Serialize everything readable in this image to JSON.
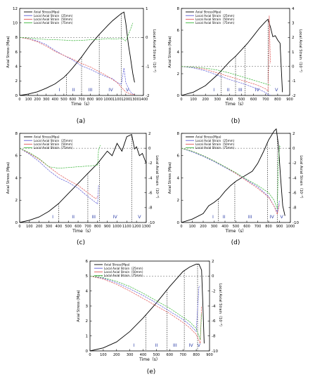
{
  "figure": {
    "panels": [
      "(a)",
      "(b)",
      "(c)",
      "(d)",
      "(e)"
    ]
  },
  "chart_data": [
    {
      "type": "line",
      "panel_label": "(a)",
      "xlabel": "Time（s）",
      "ylabel": "Axial Stress (Mpa)",
      "y2label": "Local Axial Strain（10⁻³）",
      "xlim": [
        0,
        1400
      ],
      "ylim": [
        0,
        12
      ],
      "y2lim": [
        -2,
        1
      ],
      "xticks": [
        0,
        100,
        200,
        300,
        400,
        500,
        600,
        700,
        800,
        900,
        1000,
        1100,
        1200,
        1300,
        1400
      ],
      "yticks": [
        0,
        2,
        4,
        6,
        8,
        10,
        12
      ],
      "y2ticks": [
        -2,
        -1,
        0,
        1
      ],
      "legend": [
        "Axial Stress(Mpa)",
        "Local Axial Strain（25mm）",
        "Local Axial Strain（50mm）",
        "Local Axial Strain（75mm）"
      ],
      "legend_position": "top-left",
      "stage_labels": [
        "I",
        "II",
        "III",
        "IV",
        "V"
      ],
      "stage_boundaries": [
        530,
        700,
        900,
        1150
      ],
      "stage_label_x": [
        450,
        610,
        800,
        1030,
        1220
      ],
      "series": [
        {
          "name": "Axial Stress(Mpa)",
          "axis": "left",
          "color": "#000000",
          "x": [
            0,
            100,
            200,
            300,
            400,
            500,
            550,
            600,
            700,
            800,
            900,
            1000,
            1050,
            1100,
            1150,
            1180,
            1200,
            1230,
            1250,
            1280,
            1300
          ],
          "y": [
            0,
            0.2,
            0.5,
            1.0,
            1.6,
            2.5,
            3.1,
            3.8,
            5.3,
            7.0,
            8.4,
            9.7,
            10.3,
            10.8,
            11.3,
            11.5,
            10.0,
            7.0,
            5.5,
            3.0,
            1.8
          ]
        },
        {
          "name": "Local Axial Strain（25mm）",
          "axis": "right",
          "color": "#5b5bd6",
          "x": [
            0,
            100,
            200,
            300,
            400,
            500,
            600,
            700,
            800,
            900,
            1000,
            1050,
            1100,
            1150,
            1180,
            1200,
            1230,
            1260,
            1280,
            1300
          ],
          "y": [
            0,
            -0.05,
            -0.12,
            -0.25,
            -0.45,
            -0.62,
            -0.78,
            -0.98,
            -1.1,
            -1.25,
            -1.38,
            -1.42,
            -1.55,
            -1.62,
            -1.05,
            -1.55,
            -1.75,
            -1.9,
            -1.95,
            -1.97
          ]
        },
        {
          "name": "Local Axial Strain（50mm）",
          "axis": "right",
          "color": "#e05656",
          "x": [
            0,
            100,
            200,
            300,
            400,
            500,
            600,
            700,
            800,
            900,
            1000,
            1100,
            1150,
            1200,
            1250,
            1300
          ],
          "y": [
            0,
            -0.05,
            -0.15,
            -0.3,
            -0.48,
            -0.62,
            -0.75,
            -0.9,
            -1.02,
            -1.18,
            -1.35,
            -1.55,
            -1.72,
            -1.88,
            -1.95,
            -1.97
          ]
        },
        {
          "name": "Local Axial Strain（75mm）",
          "axis": "right",
          "color": "#3cb63c",
          "x": [
            0,
            100,
            200,
            300,
            400,
            500,
            600,
            700,
            800,
            900,
            1000,
            1100,
            1150,
            1200,
            1250,
            1280
          ],
          "y": [
            0,
            -0.02,
            -0.05,
            -0.07,
            -0.08,
            -0.09,
            -0.11,
            -0.1,
            -0.08,
            -0.07,
            -0.04,
            -0.06,
            -0.02,
            -0.12,
            0.25,
            0.5
          ]
        }
      ]
    },
    {
      "type": "line",
      "panel_label": "(b)",
      "xlabel": "Time（s）",
      "ylabel": "Axial Stress (Mpa)",
      "y2label": "Local Axial Strain（10⁻³）",
      "xlim": [
        0,
        900
      ],
      "ylim": [
        0,
        8
      ],
      "y2lim": [
        -2,
        4
      ],
      "xticks": [
        0,
        100,
        200,
        300,
        400,
        500,
        600,
        700,
        800,
        900
      ],
      "yticks": [
        0,
        2,
        4,
        6,
        8
      ],
      "y2ticks": [
        -2,
        -1,
        0,
        1,
        2,
        3,
        4
      ],
      "legend": [
        "Axial Stress(Mpa)",
        "Local Axial Strain（25mm）",
        "Local Axial Strain（50mm）",
        "Local Axial Strain（75mm）"
      ],
      "legend_position": "top-left",
      "stage_labels": [
        "I",
        "II",
        "III",
        "IV",
        "V"
      ],
      "stage_boundaries": [
        330,
        450,
        530,
        720
      ],
      "stage_label_x": [
        270,
        390,
        490,
        630,
        790
      ],
      "series": [
        {
          "name": "Axial Stress(Mpa)",
          "axis": "left",
          "color": "#000000",
          "x": [
            0,
            100,
            200,
            300,
            350,
            400,
            450,
            500,
            550,
            600,
            650,
            700,
            720,
            740,
            760,
            780,
            800,
            820,
            840
          ],
          "y": [
            0,
            0.3,
            0.9,
            1.9,
            2.5,
            3.1,
            3.6,
            4.2,
            4.8,
            5.5,
            6.2,
            6.8,
            7.0,
            6.3,
            5.4,
            5.5,
            5.1,
            4.8,
            0.3
          ]
        },
        {
          "name": "Local Axial Strain（25mm）",
          "axis": "right",
          "color": "#5b5bd6",
          "x": [
            0,
            100,
            200,
            300,
            400,
            500,
            600,
            650,
            700,
            720,
            740
          ],
          "y": [
            0,
            -0.1,
            -0.3,
            -0.6,
            -0.9,
            -1.15,
            -1.45,
            -1.6,
            -1.8,
            -1.95,
            -1.98
          ]
        },
        {
          "name": "Local Axial Strain（50mm）",
          "axis": "right",
          "color": "#e05656",
          "x": [
            0,
            100,
            200,
            300,
            400,
            500,
            600,
            650,
            700,
            720,
            725,
            730,
            740
          ],
          "y": [
            0,
            -0.05,
            -0.2,
            -0.45,
            -0.7,
            -0.95,
            -1.2,
            -1.35,
            -1.55,
            -1.7,
            0.2,
            3.5,
            0.2
          ]
        },
        {
          "name": "Local Axial Strain（75mm）",
          "axis": "right",
          "color": "#3cb63c",
          "x": [
            0,
            100,
            200,
            300,
            400,
            500,
            600,
            700,
            740
          ],
          "y": [
            0,
            -0.05,
            -0.12,
            -0.25,
            -0.45,
            -0.7,
            -0.95,
            -1.2,
            -1.3
          ]
        }
      ]
    },
    {
      "type": "line",
      "panel_label": "(c)",
      "xlabel": "Time（s）",
      "ylabel": "Axial Stress (Mpa)",
      "y2label": "Local Axial Strain（10⁻³）",
      "xlim": [
        0,
        1300
      ],
      "ylim": [
        0,
        8
      ],
      "y2lim": [
        -10,
        2
      ],
      "xticks": [
        0,
        100,
        200,
        300,
        400,
        500,
        600,
        700,
        800,
        900,
        1000,
        1100,
        1200,
        1300
      ],
      "yticks": [
        0,
        2,
        4,
        6,
        8
      ],
      "y2ticks": [
        -10,
        -8,
        -6,
        -4,
        -2,
        0,
        2
      ],
      "legend": [
        "Axial Stress(Mpa)",
        "Local Axial Strain（25mm）",
        "Local Axial Strain（50mm）",
        "Local Axial Strain（75mm）"
      ],
      "legend_position": "top-left",
      "stage_labels": [
        "I",
        "II",
        "III",
        "IV",
        "V"
      ],
      "stage_boundaries": [
        400,
        700,
        820,
        1150
      ],
      "stage_label_x": [
        340,
        550,
        760,
        980,
        1230
      ],
      "series": [
        {
          "name": "Axial Stress(Mpa)",
          "axis": "left",
          "color": "#000000",
          "x": [
            0,
            100,
            200,
            300,
            400,
            500,
            600,
            700,
            800,
            900,
            950,
            1000,
            1050,
            1100,
            1150,
            1180,
            1200,
            1230,
            1260,
            1300
          ],
          "y": [
            0,
            0.2,
            0.5,
            1.0,
            1.7,
            2.6,
            3.5,
            4.4,
            5.3,
            6.4,
            6.0,
            7.1,
            6.4,
            7.7,
            7.9,
            6.6,
            6.8,
            6.0,
            6.2,
            5.3
          ]
        },
        {
          "name": "Local Axial Strain（25mm）",
          "axis": "right",
          "color": "#5b5bd6",
          "x": [
            0,
            100,
            200,
            300,
            400,
            500,
            600,
            700,
            750,
            800,
            810
          ],
          "y": [
            0,
            -0.8,
            -1.8,
            -3.0,
            -4.0,
            -4.6,
            -5.4,
            -6.5,
            -7.0,
            -7.5,
            -5
          ]
        },
        {
          "name": "Local Axial Strain（50mm）",
          "axis": "right",
          "color": "#e05656",
          "x": [
            0,
            100,
            200,
            300,
            400,
            500,
            600,
            700,
            780,
            800
          ],
          "y": [
            0,
            -0.7,
            -1.5,
            -2.5,
            -3.5,
            -4.3,
            -5.0,
            -6.0,
            -6.8,
            -6.5
          ]
        },
        {
          "name": "Local Axial Strain（75mm）",
          "axis": "right",
          "color": "#3cb63c",
          "x": [
            0,
            100,
            200,
            300,
            400,
            500,
            600,
            700,
            800,
            810,
            830
          ],
          "y": [
            0,
            -0.6,
            -1.4,
            -2.5,
            -2.7,
            -2.6,
            -2.5,
            -2.4,
            -2.3,
            -0.2,
            0.4
          ]
        }
      ]
    },
    {
      "type": "line",
      "panel_label": "(d)",
      "xlabel": "Time（s）",
      "ylabel": "Axial Stress (Mpa)",
      "y2label": "Local Axial Strain（10⁻³）",
      "xlim": [
        0,
        1000
      ],
      "ylim": [
        0,
        8
      ],
      "y2lim": [
        -10,
        2
      ],
      "xticks": [
        0,
        100,
        200,
        300,
        400,
        500,
        600,
        700,
        800,
        900,
        1000
      ],
      "yticks": [
        0,
        2,
        4,
        6,
        8
      ],
      "y2ticks": [
        -10,
        -8,
        -6,
        -4,
        -2,
        0,
        2
      ],
      "legend": [
        "Axial Stress(Mpa)",
        "Local Axial Strain（25mm）",
        "Local Axial Strain（50mm）",
        "Local Axial Strain（75mm）"
      ],
      "legend_position": "top-left",
      "stage_labels": [
        "I",
        "II",
        "III",
        "IV",
        "V"
      ],
      "stage_boundaries": [
        340,
        490,
        790,
        880
      ],
      "stage_label_x": [
        290,
        390,
        630,
        830,
        920
      ],
      "series": [
        {
          "name": "Axial Stress(Mpa)",
          "axis": "left",
          "color": "#000000",
          "x": [
            0,
            100,
            200,
            250,
            300,
            350,
            400,
            450,
            500,
            550,
            600,
            650,
            700,
            750,
            800,
            850,
            870,
            890,
            910,
            930,
            950
          ],
          "y": [
            0,
            0.3,
            0.8,
            1.5,
            1.8,
            2.2,
            2.8,
            3.3,
            3.7,
            4.0,
            4.3,
            4.6,
            5.3,
            6.3,
            7.4,
            8.2,
            8.4,
            7.0,
            4.0,
            1.5,
            0.6
          ]
        },
        {
          "name": "Local Axial Strain（25mm）",
          "axis": "right",
          "color": "#5b5bd6",
          "x": [
            0,
            100,
            200,
            300,
            400,
            500,
            600,
            700,
            800,
            850,
            880,
            900
          ],
          "y": [
            0,
            -0.5,
            -1.1,
            -1.8,
            -2.6,
            -3.4,
            -4.3,
            -5.2,
            -6.5,
            -7.8,
            -8.6,
            -7.0
          ]
        },
        {
          "name": "Local Axial Strain（50mm）",
          "axis": "right",
          "color": "#e05656",
          "x": [
            0,
            100,
            200,
            300,
            400,
            500,
            600,
            700,
            800,
            850,
            880,
            900
          ],
          "y": [
            0,
            -0.4,
            -1.0,
            -1.7,
            -2.5,
            -3.4,
            -4.4,
            -5.4,
            -6.6,
            -7.8,
            -8.9,
            -7.5
          ]
        },
        {
          "name": "Local Axial Strain（75mm）",
          "axis": "right",
          "color": "#3cb63c",
          "x": [
            0,
            100,
            200,
            300,
            400,
            500,
            600,
            700,
            800,
            850,
            880,
            890,
            900,
            910
          ],
          "y": [
            0,
            -0.4,
            -1.0,
            -1.7,
            -2.5,
            -3.3,
            -4.2,
            -5.0,
            -6.0,
            -7.0,
            -8.2,
            -2.0,
            0.3,
            0.2
          ]
        }
      ]
    },
    {
      "type": "line",
      "panel_label": "(e)",
      "xlabel": "Time（s）",
      "ylabel": "Axial Stress (Mpa)",
      "y2label": "Local Axial Strain（10⁻³）",
      "xlim": [
        0,
        900
      ],
      "ylim": [
        0,
        6
      ],
      "y2lim": [
        -10,
        2
      ],
      "xticks": [
        0,
        100,
        200,
        300,
        400,
        500,
        600,
        700,
        800,
        900
      ],
      "yticks": [
        0,
        1,
        2,
        3,
        4,
        5,
        6
      ],
      "y2ticks": [
        -10,
        -8,
        -6,
        -4,
        -2,
        0,
        2
      ],
      "legend": [
        "Axial Stress(Mpa)",
        "Local Axial Strain（25mm）",
        "Local Axial Strain（50mm）",
        "Local Axial Strain（75mm）"
      ],
      "legend_position": "top-left",
      "stage_labels": [
        "I",
        "II",
        "III",
        "IV",
        "V"
      ],
      "stage_boundaries": [
        420,
        580,
        710,
        810
      ],
      "stage_label_x": [
        330,
        500,
        640,
        760,
        820
      ],
      "series": [
        {
          "name": "Axial Stress(Mpa)",
          "axis": "left",
          "color": "#000000",
          "x": [
            0,
            100,
            200,
            300,
            400,
            500,
            600,
            650,
            700,
            750,
            800,
            820,
            840,
            850,
            860
          ],
          "y": [
            0,
            0.2,
            0.6,
            1.3,
            2.2,
            3.2,
            4.3,
            4.8,
            5.3,
            5.6,
            5.8,
            5.8,
            5.4,
            3.0,
            0.5
          ]
        },
        {
          "name": "Local Axial Strain（25mm）",
          "axis": "right",
          "color": "#5b5bd6",
          "x": [
            0,
            100,
            200,
            300,
            400,
            500,
            600,
            700,
            750,
            800,
            820,
            830
          ],
          "y": [
            0,
            -0.3,
            -0.9,
            -1.7,
            -2.6,
            -3.6,
            -4.7,
            -5.8,
            -6.5,
            -7.4,
            -1.5,
            -1.3
          ]
        },
        {
          "name": "Local Axial Strain（50mm）",
          "axis": "right",
          "color": "#e05656",
          "x": [
            0,
            100,
            200,
            300,
            400,
            500,
            600,
            700,
            750,
            800,
            830,
            840
          ],
          "y": [
            0,
            -0.4,
            -1.1,
            -2.0,
            -3.0,
            -4.0,
            -5.0,
            -6.2,
            -6.9,
            -7.8,
            -9.0,
            -4.0
          ]
        },
        {
          "name": "Local Axial Strain（75mm）",
          "axis": "right",
          "color": "#3cb63c",
          "x": [
            0,
            100,
            200,
            300,
            400,
            500,
            600,
            700,
            750,
            800,
            830,
            840
          ],
          "y": [
            0,
            -0.2,
            -0.7,
            -1.4,
            -2.3,
            -3.3,
            -4.3,
            -5.5,
            -6.1,
            -7.0,
            -8.5,
            -5.0
          ]
        }
      ]
    }
  ]
}
